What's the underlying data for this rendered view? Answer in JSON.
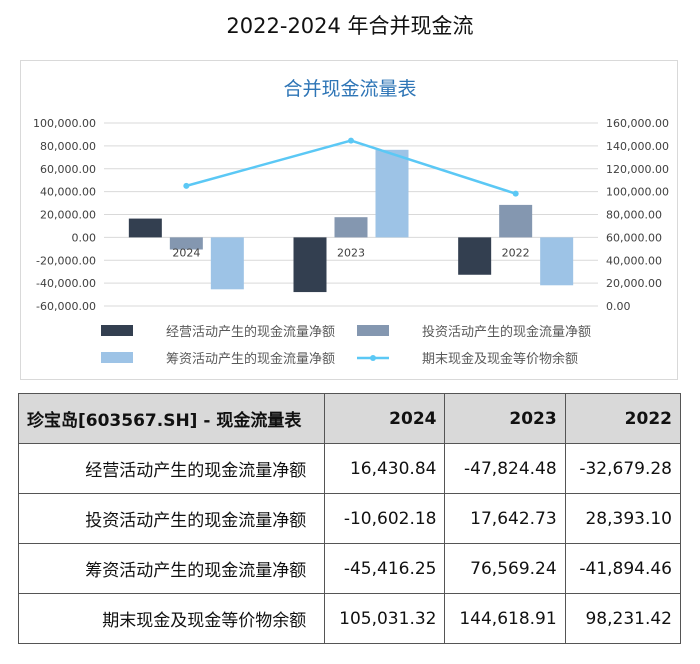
{
  "page_title": "2022-2024 年合并现金流",
  "chart_data": {
    "type": "bar",
    "title": "合并现金流量表",
    "categories": [
      "2024",
      "2023",
      "2022"
    ],
    "series": [
      {
        "name": "经营活动产生的现金流量净额",
        "type": "bar",
        "axis": "left",
        "color": "#333f50",
        "values": [
          16430.84,
          -47824.48,
          -32679.28
        ]
      },
      {
        "name": "投资活动产生的现金流量净额",
        "type": "bar",
        "axis": "left",
        "color": "#8497b0",
        "values": [
          -10602.18,
          17642.73,
          28393.1
        ]
      },
      {
        "name": "筹资活动产生的现金流量净额",
        "type": "bar",
        "axis": "left",
        "color": "#9dc3e6",
        "values": [
          -45416.25,
          76569.24,
          -41894.46
        ]
      },
      {
        "name": "期末现金及现金等价物余额",
        "type": "line",
        "axis": "right",
        "color": "#5bc8f5",
        "values": [
          105031.32,
          144618.91,
          98231.42
        ]
      }
    ],
    "y_left": {
      "min": -60000,
      "max": 100000,
      "step": 20000,
      "ticks": [
        "-60,000.00",
        "-40,000.00",
        "-20,000.00",
        "0.00",
        "20,000.00",
        "40,000.00",
        "60,000.00",
        "80,000.00",
        "100,000.00"
      ]
    },
    "y_right": {
      "min": 0,
      "max": 160000,
      "step": 20000,
      "ticks": [
        "0.00",
        "20,000.00",
        "40,000.00",
        "60,000.00",
        "80,000.00",
        "100,000.00",
        "120,000.00",
        "140,000.00",
        "160,000.00"
      ]
    },
    "grid": true,
    "legend": "bottom"
  },
  "table": {
    "header": [
      "珍宝岛[603567.SH] - 现金流量表",
      "2024",
      "2023",
      "2022"
    ],
    "rows": [
      [
        "经营活动产生的现金流量净额",
        "16,430.84",
        "-47,824.48",
        "-32,679.28"
      ],
      [
        "投资活动产生的现金流量净额",
        "-10,602.18",
        "17,642.73",
        "28,393.10"
      ],
      [
        "筹资活动产生的现金流量净额",
        "-45,416.25",
        "76,569.24",
        "-41,894.46"
      ],
      [
        "期末现金及现金等价物余额",
        "105,031.32",
        "144,618.91",
        "98,231.42"
      ]
    ]
  }
}
